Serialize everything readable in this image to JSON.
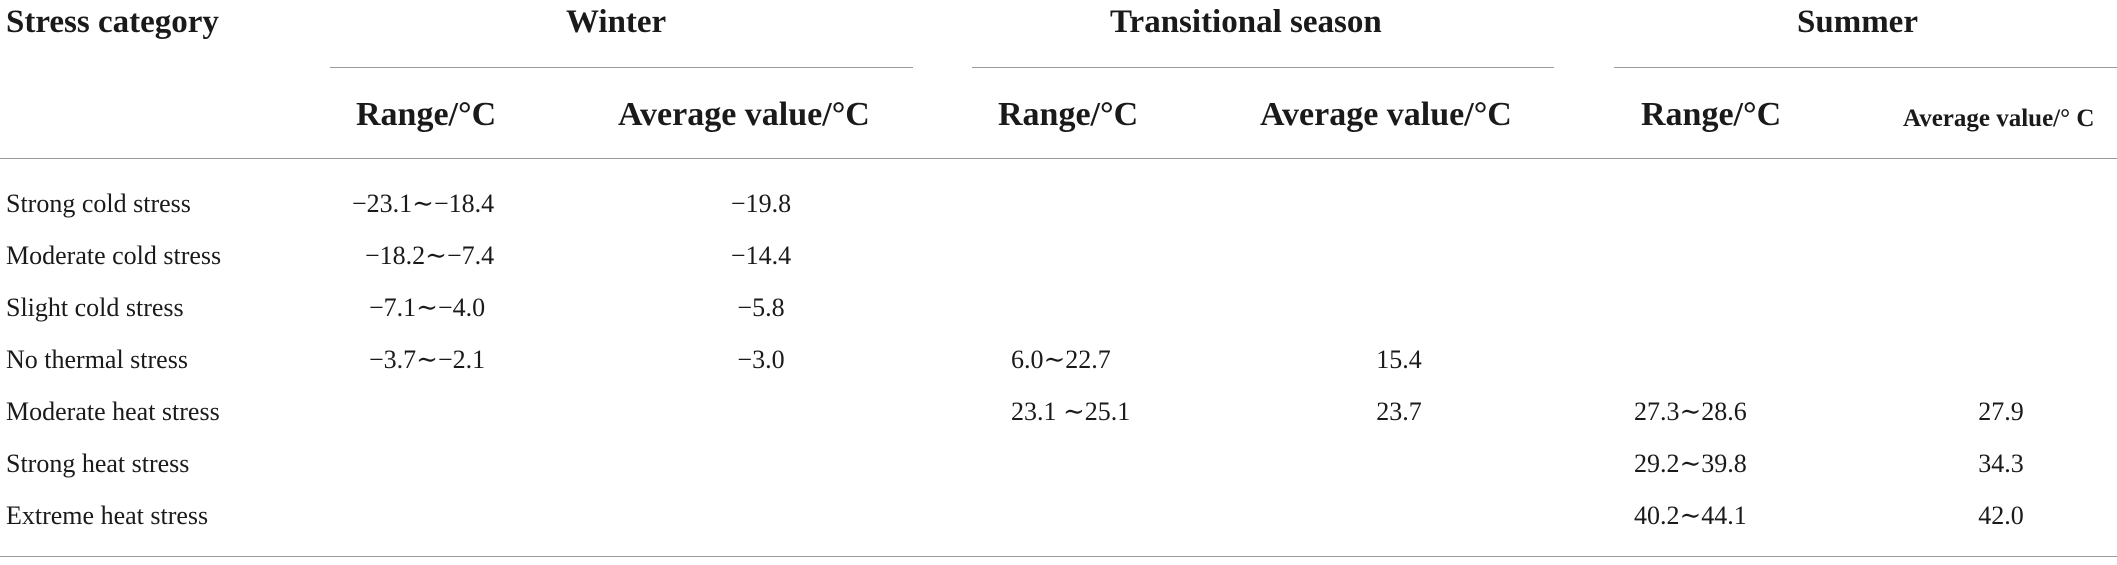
{
  "header": {
    "stress_category": "Stress category",
    "winter": "Winter",
    "transitional": "Transitional season",
    "summer": "Summer",
    "winter_range": "Range/°C",
    "winter_avg": "Average value/°C",
    "trans_range": "Range/°C",
    "trans_avg": "Average value/°C",
    "summer_range": "Range/°C",
    "summer_avg": "Average value/° C"
  },
  "rows": [
    {
      "category": "Strong cold stress",
      "winter_range": "−23.1∼−18.4",
      "winter_avg": "−19.8",
      "trans_range": "",
      "trans_avg": "",
      "summer_range": "",
      "summer_avg": ""
    },
    {
      "category": "Moderate cold stress",
      "winter_range": "−18.2∼−7.4",
      "winter_avg": "−14.4",
      "trans_range": "",
      "trans_avg": "",
      "summer_range": "",
      "summer_avg": ""
    },
    {
      "category": "Slight cold stress",
      "winter_range": "−7.1∼−4.0",
      "winter_avg": "−5.8",
      "trans_range": "",
      "trans_avg": "",
      "summer_range": "",
      "summer_avg": ""
    },
    {
      "category": "No thermal stress",
      "winter_range": "−3.7∼−2.1",
      "winter_avg": "−3.0",
      "trans_range": "6.0∼22.7",
      "trans_avg": "15.4",
      "summer_range": "",
      "summer_avg": ""
    },
    {
      "category": "Moderate heat stress",
      "winter_range": "",
      "winter_avg": "",
      "trans_range": "23.1 ∼25.1",
      "trans_avg": "23.7",
      "summer_range": "27.3∼28.6",
      "summer_avg": "27.9"
    },
    {
      "category": "Strong heat stress",
      "winter_range": "",
      "winter_avg": "",
      "trans_range": "",
      "trans_avg": "",
      "summer_range": "29.2∼39.8",
      "summer_avg": "34.3"
    },
    {
      "category": "Extreme heat stress",
      "winter_range": "",
      "winter_avg": "",
      "trans_range": "",
      "trans_avg": "",
      "summer_range": "40.2∼44.1",
      "summer_avg": "42.0"
    }
  ]
}
